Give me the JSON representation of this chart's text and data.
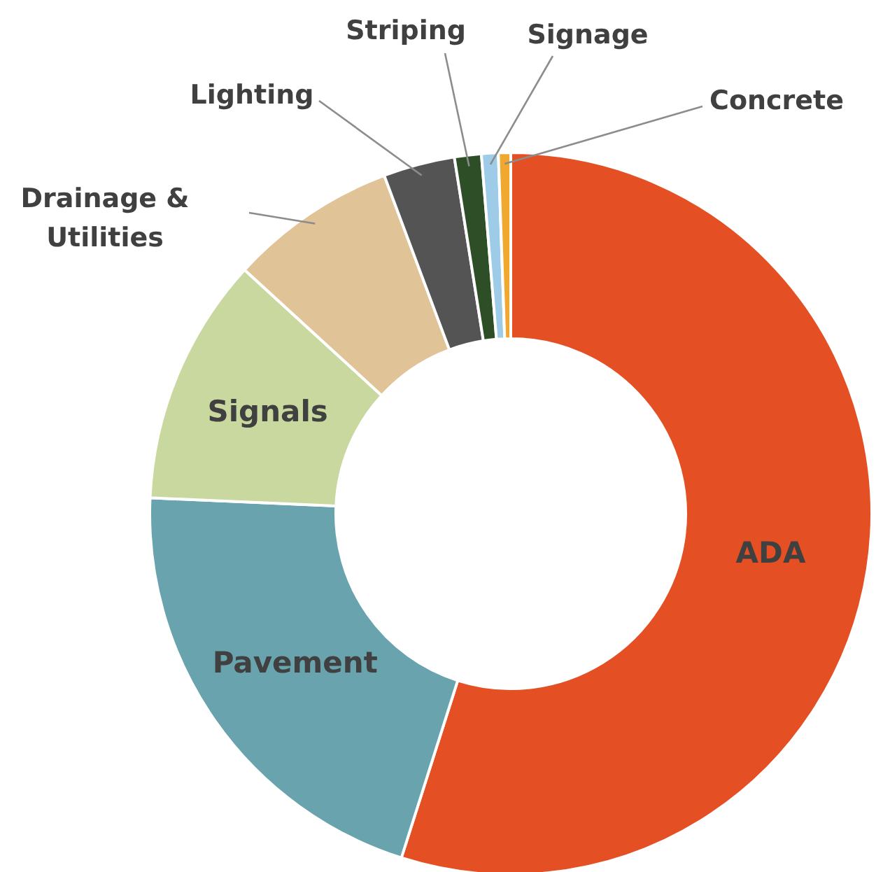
{
  "chart_data": {
    "type": "donut",
    "categories": [
      "ADA",
      "Pavement",
      "Signals",
      "Drainage & Utilities",
      "Lighting",
      "Striping",
      "Signage",
      "Concrete"
    ],
    "values": [
      54.9,
      20.8,
      11.1,
      7.5,
      3.2,
      1.2,
      0.75,
      0.55
    ],
    "colors": [
      "#e44f23",
      "#68a3ae",
      "#c8d89e",
      "#e0c396",
      "#545454",
      "#2d4e26",
      "#9dcbe8",
      "#f0a830"
    ]
  }
}
